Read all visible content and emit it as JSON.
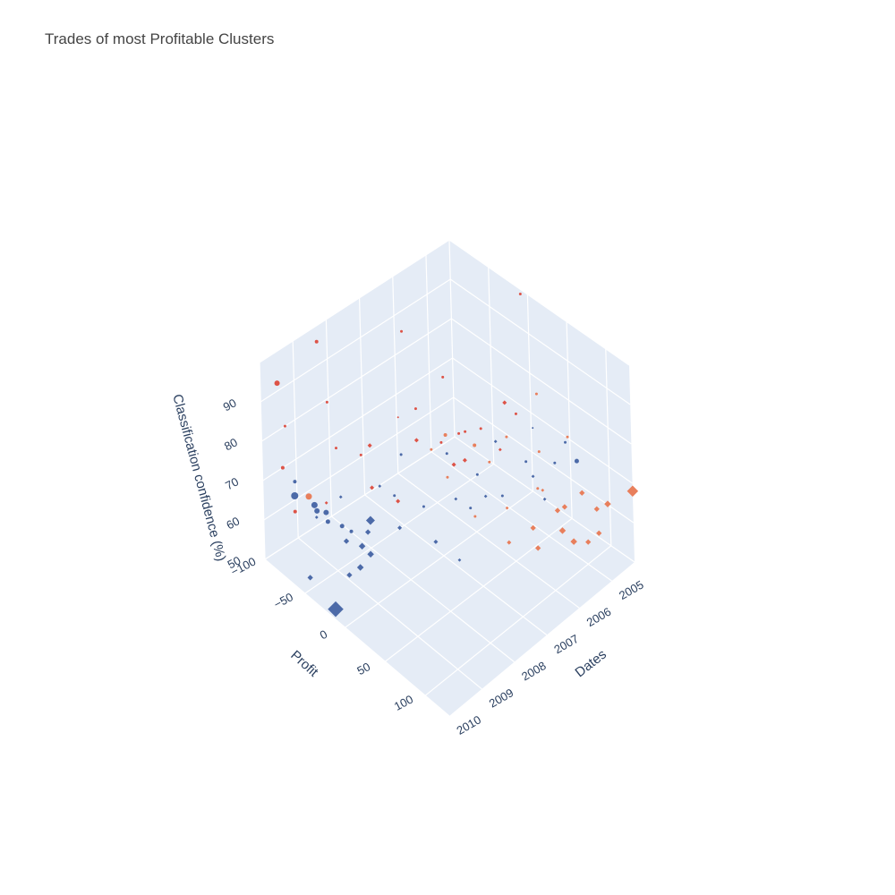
{
  "chart_data": {
    "type": "scatter",
    "subtype": "scatter3d",
    "title": "Trades of most Profitable Clusters",
    "axes": {
      "x": {
        "label": "Profit",
        "range": [
          -100,
          130
        ],
        "ticks": [
          -100,
          -50,
          0,
          50,
          100
        ]
      },
      "y": {
        "label": "Dates",
        "range": [
          2004.3,
          2010
        ],
        "ticks": [
          2005,
          2006,
          2007,
          2008,
          2009,
          2010
        ]
      },
      "z": {
        "label": "Classification confidence (%)",
        "range": [
          50,
          100
        ],
        "ticks": [
          50,
          60,
          70,
          80,
          90
        ]
      }
    },
    "grid": true,
    "legend": "none",
    "colors": {
      "cluster_a": "#4c6aa8",
      "cluster_b": "#dd5347",
      "cluster_c": "#e87f5c"
    },
    "series": [
      {
        "marker": "circle",
        "color": "#4c6aa8",
        "points": [
          {
            "x": -90,
            "y": 2009.3,
            "z": 64,
            "s": 8
          },
          {
            "x": -78,
            "y": 2009.0,
            "z": 62,
            "s": 7
          },
          {
            "x": -75,
            "y": 2009.0,
            "z": 61,
            "s": 6
          },
          {
            "x": -72,
            "y": 2008.8,
            "z": 60,
            "s": 6
          },
          {
            "x": -70,
            "y": 2008.8,
            "z": 58,
            "s": 5
          },
          {
            "x": -65,
            "y": 2008.5,
            "z": 56,
            "s": 5
          },
          {
            "x": -62,
            "y": 2008.3,
            "z": 54,
            "s": 4
          },
          {
            "x": -85,
            "y": 2009.4,
            "z": 69,
            "s": 4
          },
          {
            "x": -40,
            "y": 2007.5,
            "z": 62,
            "s": 3
          },
          {
            "x": -20,
            "y": 2007.1,
            "z": 60,
            "s": 3
          },
          {
            "x": 10,
            "y": 2006.4,
            "z": 60,
            "s": 3
          },
          {
            "x": 30,
            "y": 2005.9,
            "z": 63,
            "s": 3
          },
          {
            "x": 20,
            "y": 2006.4,
            "z": 70,
            "s": 3
          },
          {
            "x": -30,
            "y": 2007.5,
            "z": 74,
            "s": 3
          },
          {
            "x": 40,
            "y": 2005.4,
            "z": 70,
            "s": 3
          },
          {
            "x": 60,
            "y": 2005.0,
            "z": 70,
            "s": 3
          },
          {
            "x": -10,
            "y": 2006.6,
            "z": 72,
            "s": 3
          },
          {
            "x": 50,
            "y": 2005.4,
            "z": 80,
            "s": 2
          },
          {
            "x": 70,
            "y": 2004.9,
            "z": 76,
            "s": 3
          },
          {
            "x": 80,
            "y": 2004.8,
            "z": 72,
            "s": 5
          }
        ]
      },
      {
        "marker": "diamond",
        "color": "#4c6aa8",
        "points": [
          {
            "x": -20,
            "y": 2009.8,
            "z": 50,
            "s": 14
          },
          {
            "x": -30,
            "y": 2008.8,
            "z": 53,
            "s": 6
          },
          {
            "x": -40,
            "y": 2008.5,
            "z": 55,
            "s": 6
          },
          {
            "x": -25,
            "y": 2008.6,
            "z": 56,
            "s": 6
          },
          {
            "x": -50,
            "y": 2008.0,
            "z": 57,
            "s": 8
          },
          {
            "x": -45,
            "y": 2008.2,
            "z": 56,
            "s": 5
          },
          {
            "x": -60,
            "y": 2008.5,
            "z": 53,
            "s": 5
          },
          {
            "x": -30,
            "y": 2007.6,
            "z": 56,
            "s": 4
          },
          {
            "x": -10,
            "y": 2007.0,
            "z": 52,
            "s": 4
          },
          {
            "x": -60,
            "y": 2009.6,
            "z": 50,
            "s": 5
          },
          {
            "x": -40,
            "y": 2008.9,
            "z": 50,
            "s": 5
          },
          {
            "x": 20,
            "y": 2007.0,
            "z": 52,
            "s": 3
          },
          {
            "x": 40,
            "y": 2005.2,
            "z": 65,
            "s": 3
          },
          {
            "x": 50,
            "y": 2005.1,
            "z": 60,
            "s": 3
          },
          {
            "x": 0,
            "y": 2006.6,
            "z": 62,
            "s": 3
          },
          {
            "x": -70,
            "y": 2008.4,
            "z": 62,
            "s": 3
          },
          {
            "x": -50,
            "y": 2007.7,
            "z": 64,
            "s": 3
          },
          {
            "x": -80,
            "y": 2008.9,
            "z": 58,
            "s": 3
          },
          {
            "x": 30,
            "y": 2006.4,
            "z": 66,
            "s": 3
          },
          {
            "x": 10,
            "y": 2005.6,
            "z": 72,
            "s": 3
          }
        ]
      },
      {
        "marker": "circle",
        "color": "#dd5347",
        "points": [
          {
            "x": -100,
            "y": 2009.5,
            "z": 92,
            "s": 6
          },
          {
            "x": -100,
            "y": 2008.3,
            "z": 96,
            "s": 4
          },
          {
            "x": -60,
            "y": 2006.7,
            "z": 96,
            "s": 3
          },
          {
            "x": -80,
            "y": 2008.5,
            "z": 85,
            "s": 3
          },
          {
            "x": -100,
            "y": 2009.3,
            "z": 80,
            "s": 3
          },
          {
            "x": -70,
            "y": 2008.5,
            "z": 75,
            "s": 3
          },
          {
            "x": -60,
            "y": 2008.0,
            "z": 72,
            "s": 3
          },
          {
            "x": -30,
            "y": 2006.2,
            "z": 86,
            "s": 3
          },
          {
            "x": -40,
            "y": 2006.8,
            "z": 80,
            "s": 3
          },
          {
            "x": -100,
            "y": 2009.4,
            "z": 70,
            "s": 4
          },
          {
            "x": -90,
            "y": 2009.3,
            "z": 60,
            "s": 4
          },
          {
            "x": -50,
            "y": 2007.1,
            "z": 78,
            "s": 2
          },
          {
            "x": 10,
            "y": 2006.5,
            "z": 80,
            "s": 3
          },
          {
            "x": -5,
            "y": 2004.4,
            "z": 100,
            "s": 3
          },
          {
            "x": 20,
            "y": 2005.2,
            "z": 78,
            "s": 3
          },
          {
            "x": -20,
            "y": 2006.0,
            "z": 72,
            "s": 3
          },
          {
            "x": -30,
            "y": 2006.3,
            "z": 70,
            "s": 3
          },
          {
            "x": 0,
            "y": 2005.8,
            "z": 75,
            "s": 3
          }
        ]
      },
      {
        "marker": "diamond",
        "color": "#dd5347",
        "points": [
          {
            "x": -70,
            "y": 2007.5,
            "z": 70,
            "s": 4
          },
          {
            "x": -60,
            "y": 2007.7,
            "z": 62,
            "s": 4
          },
          {
            "x": -40,
            "y": 2007.4,
            "z": 60,
            "s": 4
          },
          {
            "x": -10,
            "y": 2006.4,
            "z": 68,
            "s": 4
          },
          {
            "x": 10,
            "y": 2005.3,
            "z": 80,
            "s": 4
          },
          {
            "x": -40,
            "y": 2006.8,
            "z": 72,
            "s": 4
          },
          {
            "x": 0,
            "y": 2006.3,
            "z": 70,
            "s": 4
          },
          {
            "x": -80,
            "y": 2008.6,
            "z": 60,
            "s": 3
          },
          {
            "x": 20,
            "y": 2005.7,
            "z": 72,
            "s": 3
          }
        ]
      },
      {
        "marker": "circle",
        "color": "#e87f5c",
        "points": [
          {
            "x": -85,
            "y": 2009.0,
            "z": 63,
            "s": 7
          },
          {
            "x": -20,
            "y": 2006.4,
            "z": 74,
            "s": 4
          },
          {
            "x": 0,
            "y": 2006.0,
            "z": 72,
            "s": 4
          },
          {
            "x": 20,
            "y": 2005.5,
            "z": 74,
            "s": 3
          },
          {
            "x": 30,
            "y": 2004.8,
            "z": 82,
            "s": 3
          },
          {
            "x": -30,
            "y": 2006.6,
            "z": 70,
            "s": 3
          },
          {
            "x": 10,
            "y": 2005.8,
            "z": 68,
            "s": 3
          },
          {
            "x": 40,
            "y": 2005.0,
            "z": 70,
            "s": 3
          },
          {
            "x": 60,
            "y": 2004.6,
            "z": 74,
            "s": 3
          },
          {
            "x": -10,
            "y": 2006.6,
            "z": 66,
            "s": 3
          },
          {
            "x": 50,
            "y": 2005.3,
            "z": 64,
            "s": 3
          },
          {
            "x": 20,
            "y": 2006.5,
            "z": 60,
            "s": 3
          }
        ]
      },
      {
        "marker": "diamond",
        "color": "#e87f5c",
        "points": [
          {
            "x": 130,
            "y": 2004.3,
            "z": 68,
            "s": 10
          },
          {
            "x": 110,
            "y": 2004.6,
            "z": 64,
            "s": 6
          },
          {
            "x": 100,
            "y": 2004.7,
            "z": 62,
            "s": 5
          },
          {
            "x": 90,
            "y": 2004.9,
            "z": 66,
            "s": 5
          },
          {
            "x": 80,
            "y": 2005.2,
            "z": 63,
            "s": 5
          },
          {
            "x": 95,
            "y": 2005.3,
            "z": 57,
            "s": 6
          },
          {
            "x": 105,
            "y": 2005.1,
            "z": 57,
            "s": 5
          },
          {
            "x": 75,
            "y": 2005.3,
            "z": 62,
            "s": 5
          },
          {
            "x": 60,
            "y": 2005.7,
            "z": 58,
            "s": 5
          },
          {
            "x": 85,
            "y": 2005.4,
            "z": 59,
            "s": 6
          },
          {
            "x": 70,
            "y": 2005.8,
            "z": 55,
            "s": 5
          },
          {
            "x": 50,
            "y": 2006.2,
            "z": 56,
            "s": 4
          },
          {
            "x": 115,
            "y": 2005.0,
            "z": 60,
            "s": 5
          },
          {
            "x": 40,
            "y": 2006.0,
            "z": 62,
            "s": 3
          },
          {
            "x": 65,
            "y": 2005.5,
            "z": 67,
            "s": 3
          }
        ]
      }
    ]
  }
}
